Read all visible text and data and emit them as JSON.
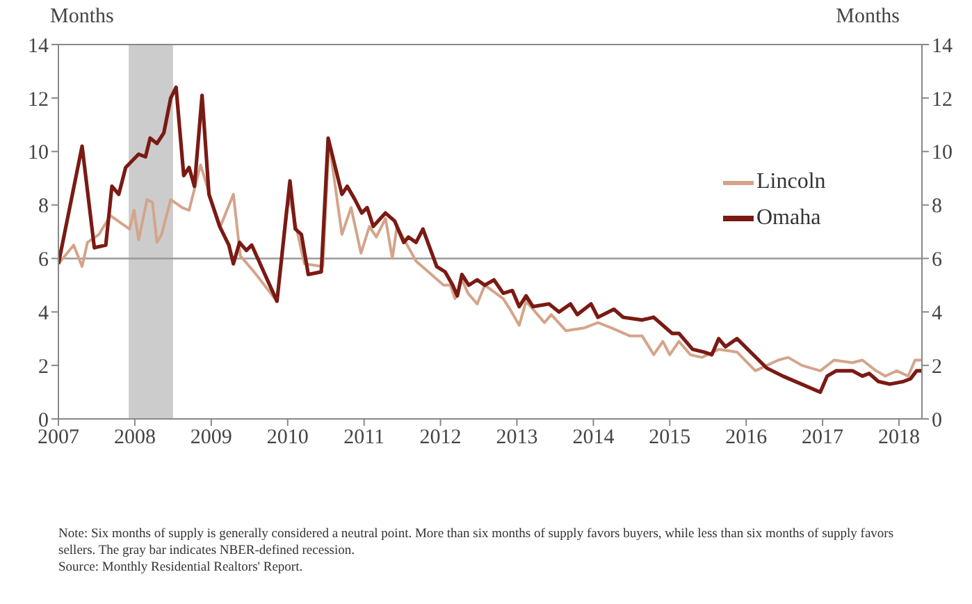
{
  "chart_data": {
    "type": "line",
    "ylabel": "Months",
    "y2label": "Months",
    "xlim": [
      2007,
      2018.3
    ],
    "xticks": [
      2007,
      2008,
      2009,
      2010,
      2011,
      2012,
      2013,
      2014,
      2015,
      2016,
      2017,
      2018
    ],
    "ylim": [
      0,
      14
    ],
    "yticks": [
      0,
      2,
      4,
      6,
      8,
      10,
      12,
      14
    ],
    "y2lim": [
      0,
      14
    ],
    "y2ticks": [
      0,
      2,
      4,
      6,
      8,
      10,
      12,
      14
    ],
    "legend": "right",
    "marker": "none",
    "line_style": "solid",
    "ref_lines": [
      {
        "axis": "y",
        "value": 6,
        "color": "#9a9a9a"
      }
    ],
    "bands": [
      {
        "axis": "x",
        "from": 2007.92,
        "to": 2008.5,
        "color": "#cccccc"
      }
    ],
    "series": [
      {
        "name": "Lincoln",
        "color": "#d4a48a",
        "x": [
          2007.0,
          2007.2,
          2007.31,
          2007.38,
          2007.53,
          2007.68,
          2007.93,
          2007.99,
          2008.05,
          2008.16,
          2008.23,
          2008.29,
          2008.35,
          2008.47,
          2008.62,
          2008.71,
          2008.86,
          2009.01,
          2009.12,
          2009.29,
          2009.38,
          2009.56,
          2009.86,
          2009.98,
          2010.03,
          2010.22,
          2010.46,
          2010.54,
          2010.71,
          2010.83,
          2010.96,
          2011.07,
          2011.16,
          2011.28,
          2011.37,
          2011.43,
          2011.68,
          2012.04,
          2012.13,
          2012.19,
          2012.28,
          2012.36,
          2012.48,
          2012.58,
          2012.82,
          2012.91,
          2013.03,
          2013.12,
          2013.36,
          2013.45,
          2013.64,
          2013.88,
          2014.06,
          2014.24,
          2014.48,
          2014.64,
          2014.79,
          2014.91,
          2015.0,
          2015.12,
          2015.27,
          2015.42,
          2015.64,
          2015.88,
          2016.12,
          2016.42,
          2016.55,
          2016.73,
          2016.97,
          2017.15,
          2017.39,
          2017.52,
          2017.7,
          2017.82,
          2017.97,
          2018.12,
          2018.21,
          2018.3
        ],
        "values": [
          5.8,
          6.5,
          5.7,
          6.6,
          6.9,
          7.6,
          7.1,
          7.8,
          6.7,
          8.2,
          8.1,
          6.6,
          6.9,
          8.2,
          7.9,
          7.8,
          9.5,
          8.1,
          7.2,
          8.4,
          6.1,
          5.5,
          4.4,
          7.8,
          8.2,
          5.8,
          5.7,
          10.4,
          6.9,
          7.9,
          6.2,
          7.2,
          6.8,
          7.5,
          6.0,
          7.2,
          5.9,
          5.0,
          5.0,
          4.5,
          5.2,
          4.7,
          4.3,
          5.0,
          4.5,
          4.1,
          3.5,
          4.4,
          3.6,
          3.9,
          3.3,
          3.4,
          3.6,
          3.4,
          3.1,
          3.1,
          2.4,
          2.9,
          2.4,
          2.9,
          2.4,
          2.3,
          2.6,
          2.5,
          1.8,
          2.2,
          2.3,
          2.0,
          1.8,
          2.2,
          2.1,
          2.2,
          1.8,
          1.6,
          1.8,
          1.6,
          2.2,
          2.2
        ]
      },
      {
        "name": "Omaha",
        "color": "#7a1a14",
        "x": [
          2007.0,
          2007.31,
          2007.47,
          2007.62,
          2007.7,
          2007.79,
          2007.88,
          2008.05,
          2008.14,
          2008.2,
          2008.29,
          2008.38,
          2008.47,
          2008.54,
          2008.64,
          2008.71,
          2008.78,
          2008.88,
          2008.97,
          2009.11,
          2009.23,
          2009.29,
          2009.37,
          2009.46,
          2009.53,
          2009.86,
          2010.03,
          2010.1,
          2010.18,
          2010.27,
          2010.44,
          2010.53,
          2010.71,
          2010.78,
          2010.88,
          2010.97,
          2011.04,
          2011.12,
          2011.28,
          2011.4,
          2011.52,
          2011.58,
          2011.68,
          2011.77,
          2011.95,
          2012.06,
          2012.16,
          2012.22,
          2012.28,
          2012.37,
          2012.48,
          2012.58,
          2012.7,
          2012.82,
          2012.94,
          2013.03,
          2013.12,
          2013.21,
          2013.42,
          2013.55,
          2013.7,
          2013.79,
          2013.97,
          2014.06,
          2014.27,
          2014.39,
          2014.64,
          2014.79,
          2015.03,
          2015.12,
          2015.3,
          2015.45,
          2015.55,
          2015.64,
          2015.73,
          2015.88,
          2016.27,
          2016.48,
          2016.97,
          2017.06,
          2017.18,
          2017.39,
          2017.52,
          2017.61,
          2017.73,
          2017.88,
          2018.06,
          2018.15,
          2018.23,
          2018.3
        ],
        "values": [
          5.8,
          10.2,
          6.4,
          6.5,
          8.7,
          8.4,
          9.4,
          9.9,
          9.8,
          10.5,
          10.3,
          10.7,
          12.0,
          12.4,
          9.1,
          9.4,
          8.7,
          12.1,
          8.4,
          7.2,
          6.5,
          5.8,
          6.6,
          6.3,
          6.5,
          4.4,
          8.9,
          7.1,
          6.9,
          5.4,
          5.5,
          10.5,
          8.4,
          8.7,
          8.2,
          7.7,
          7.9,
          7.2,
          7.7,
          7.4,
          6.6,
          6.8,
          6.6,
          7.1,
          5.7,
          5.5,
          5.0,
          4.6,
          5.4,
          5.0,
          5.2,
          5.0,
          5.2,
          4.7,
          4.8,
          4.2,
          4.6,
          4.2,
          4.3,
          4.0,
          4.3,
          3.9,
          4.3,
          3.8,
          4.1,
          3.8,
          3.7,
          3.8,
          3.2,
          3.2,
          2.6,
          2.5,
          2.4,
          3.0,
          2.7,
          3.0,
          1.9,
          1.6,
          1.0,
          1.6,
          1.8,
          1.8,
          1.6,
          1.7,
          1.4,
          1.3,
          1.4,
          1.5,
          1.8,
          1.8
        ]
      }
    ],
    "annotations": [
      "Note: Six months of supply is generally considered a neutral point. More than six months of supply favors buyers, while less than six months of supply favors sellers. The gray bar indicates NBER-defined recession.",
      "Source: Monthly Residential Realtors' Report."
    ]
  }
}
